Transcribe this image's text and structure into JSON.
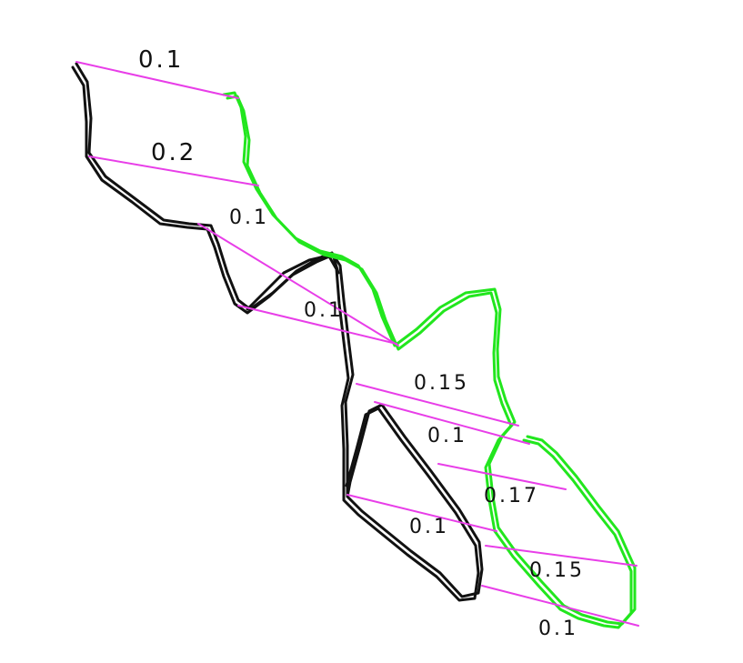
{
  "colors": {
    "left_outline": "#111111",
    "right_outline": "#22e61e",
    "leader_lines": "#e83ee8"
  },
  "measurements": [
    {
      "label": "0.1"
    },
    {
      "label": "0.2"
    },
    {
      "label": "0.1"
    },
    {
      "label": "0.1"
    },
    {
      "label": "0.15"
    },
    {
      "label": "0.1"
    },
    {
      "label": "0.17"
    },
    {
      "label": "0.1"
    },
    {
      "label": "0.15"
    },
    {
      "label": "0.1"
    }
  ]
}
